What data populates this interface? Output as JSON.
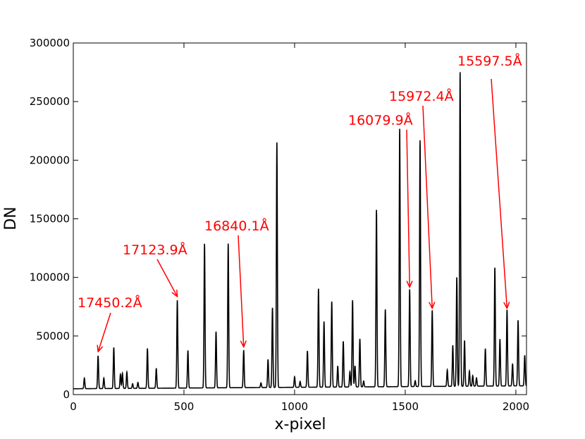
{
  "chart_data": {
    "type": "line",
    "title": "",
    "xlabel": "x-pixel",
    "ylabel": "DN",
    "xlim": [
      0,
      2048
    ],
    "ylim": [
      0,
      300000
    ],
    "x_ticks": [
      0,
      500,
      1000,
      1500,
      2000
    ],
    "x_tick_labels": [
      "0",
      "500",
      "1000",
      "1500",
      "2000"
    ],
    "y_ticks": [
      0,
      50000,
      100000,
      150000,
      200000,
      250000,
      300000
    ],
    "y_tick_labels": [
      "0",
      "50000",
      "100000",
      "150000",
      "200000",
      "250000",
      "300000"
    ],
    "grid": false,
    "line_color": "#000000",
    "annotation_color": "#ff0000",
    "baseline": 5000,
    "peaks": [
      [
        50,
        14000
      ],
      [
        112,
        33000
      ],
      [
        138,
        14000
      ],
      [
        183,
        40000
      ],
      [
        213,
        17000
      ],
      [
        222,
        18000
      ],
      [
        242,
        19000
      ],
      [
        268,
        9000
      ],
      [
        292,
        10000
      ],
      [
        335,
        39000
      ],
      [
        375,
        22000
      ],
      [
        470,
        80000
      ],
      [
        518,
        37000
      ],
      [
        593,
        128000
      ],
      [
        645,
        53000
      ],
      [
        700,
        128000
      ],
      [
        770,
        37000
      ],
      [
        848,
        9000
      ],
      [
        880,
        29000
      ],
      [
        900,
        73000
      ],
      [
        920,
        214000
      ],
      [
        1000,
        14000
      ],
      [
        1025,
        10000
      ],
      [
        1058,
        36000
      ],
      [
        1108,
        89000
      ],
      [
        1133,
        61000
      ],
      [
        1168,
        78000
      ],
      [
        1195,
        23000
      ],
      [
        1220,
        44000
      ],
      [
        1250,
        18000
      ],
      [
        1262,
        79000
      ],
      [
        1273,
        23000
      ],
      [
        1295,
        46000
      ],
      [
        1312,
        10000
      ],
      [
        1370,
        156000
      ],
      [
        1410,
        71000
      ],
      [
        1475,
        225000
      ],
      [
        1520,
        88000
      ],
      [
        1545,
        10000
      ],
      [
        1567,
        215000
      ],
      [
        1622,
        70000
      ],
      [
        1690,
        19000
      ],
      [
        1715,
        40000
      ],
      [
        1733,
        98000
      ],
      [
        1748,
        273000
      ],
      [
        1768,
        44000
      ],
      [
        1790,
        18000
      ],
      [
        1805,
        14000
      ],
      [
        1822,
        12000
      ],
      [
        1862,
        37000
      ],
      [
        1905,
        106000
      ],
      [
        1928,
        45000
      ],
      [
        1960,
        70000
      ],
      [
        1985,
        24000
      ],
      [
        2010,
        61000
      ],
      [
        2040,
        31000
      ]
    ],
    "annotations": [
      {
        "text": "17450.2Å",
        "x": 112,
        "y": 33000
      },
      {
        "text": "17123.9Å",
        "x": 470,
        "y": 80000
      },
      {
        "text": "16840.1Å",
        "x": 770,
        "y": 37000
      },
      {
        "text": "16079.9Å",
        "x": 1520,
        "y": 88000
      },
      {
        "text": "15972.4Å",
        "x": 1622,
        "y": 70000
      },
      {
        "text": "15597.5Å",
        "x": 1960,
        "y": 70000
      }
    ]
  }
}
